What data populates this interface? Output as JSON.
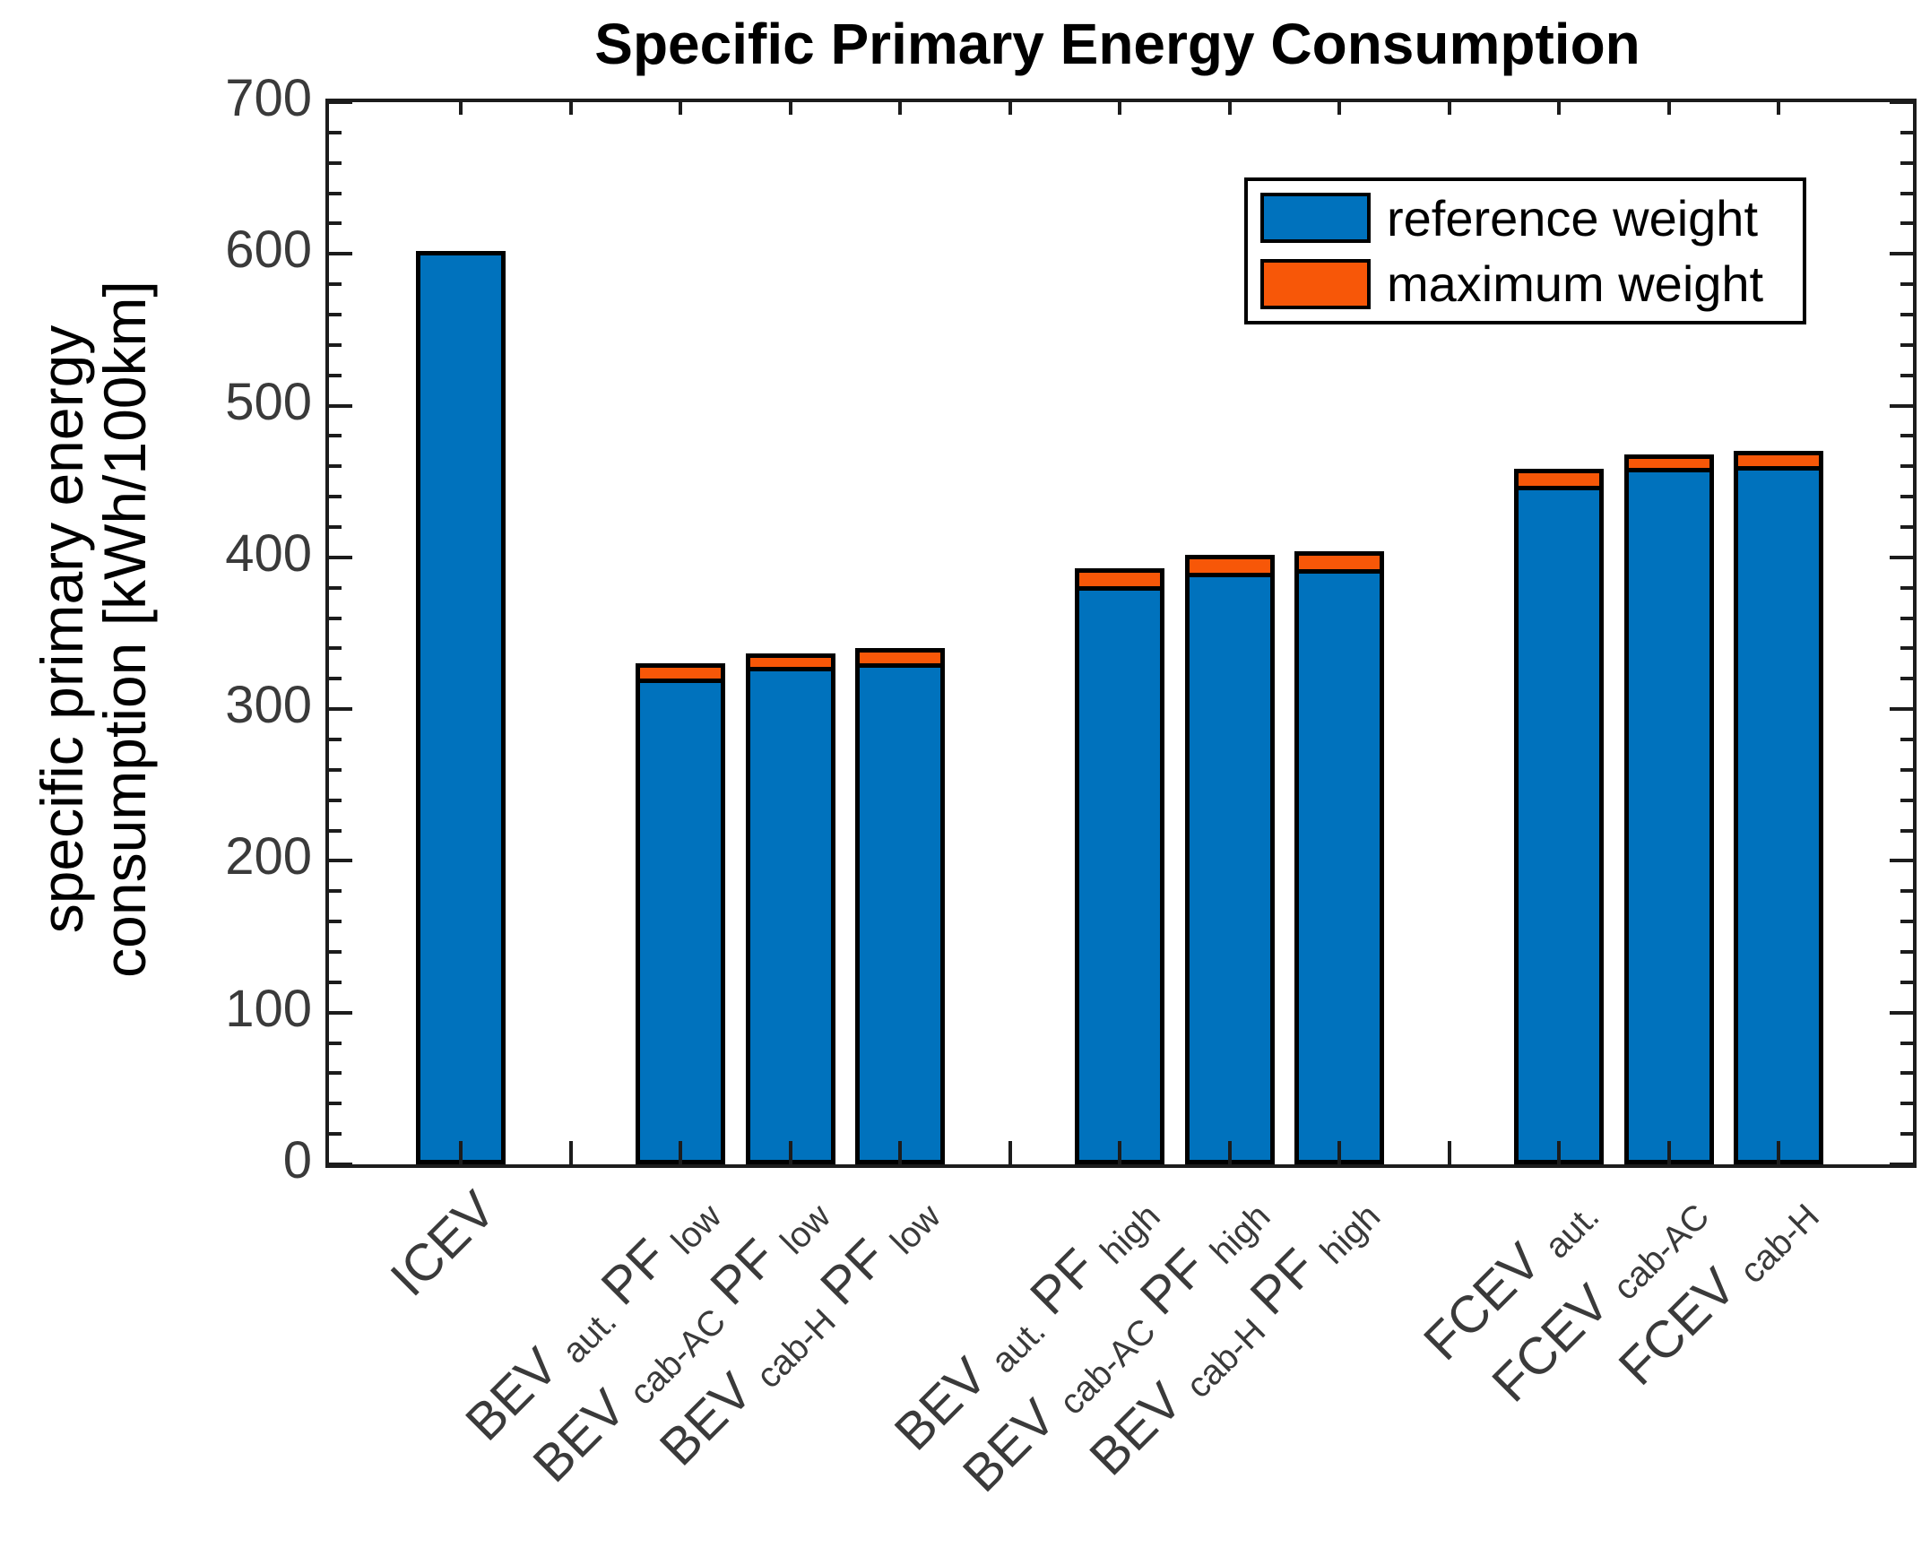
{
  "title": "Specific Primary Energy Consumption",
  "y_axis": {
    "label_lines": [
      "specific primary energy",
      "consumption [kWh/100km]"
    ],
    "ticks": [
      0,
      100,
      200,
      300,
      400,
      500,
      600,
      700
    ],
    "minor_tick_step": 20,
    "range": [
      0,
      700
    ]
  },
  "x_axis": {
    "tick_slots": [
      1,
      2,
      3,
      4,
      5,
      6,
      7,
      8,
      9,
      10,
      11,
      12,
      13
    ]
  },
  "legend": {
    "items": [
      {
        "label": "reference weight",
        "color": "#0072BD"
      },
      {
        "label": "maximum weight",
        "color": "#F75708"
      }
    ]
  },
  "chart_data": {
    "type": "bar",
    "stacked": true,
    "title": "Specific Primary Energy Consumption",
    "ylabel": "specific primary energy consumption [kWh/100km]",
    "xlabel": "",
    "ylim": [
      0,
      700
    ],
    "grid": false,
    "legend_position": "upper right",
    "categories": [
      {
        "slot": 1,
        "label_parts": [
          "ICEV"
        ]
      },
      {
        "slot": 3,
        "label_parts": [
          "BEV ",
          "aut.",
          " PF ",
          "low"
        ]
      },
      {
        "slot": 4,
        "label_parts": [
          "BEV ",
          "cab-AC",
          " PF ",
          "low"
        ]
      },
      {
        "slot": 5,
        "label_parts": [
          "BEV ",
          "cab-H",
          " PF ",
          "low"
        ]
      },
      {
        "slot": 7,
        "label_parts": [
          "BEV ",
          "aut.",
          " PF ",
          "high"
        ]
      },
      {
        "slot": 8,
        "label_parts": [
          "BEV ",
          "cab-AC",
          " PF ",
          "high"
        ]
      },
      {
        "slot": 9,
        "label_parts": [
          "BEV ",
          "cab-H",
          " PF ",
          "high"
        ]
      },
      {
        "slot": 11,
        "label_parts": [
          "FCEV ",
          "aut."
        ]
      },
      {
        "slot": 12,
        "label_parts": [
          "FCEV ",
          "cab-AC"
        ]
      },
      {
        "slot": 13,
        "label_parts": [
          "FCEV ",
          "cab-H"
        ]
      }
    ],
    "series": [
      {
        "name": "reference weight",
        "color": "#0072BD",
        "values": [
          602,
          320,
          328,
          330,
          381,
          390,
          392,
          447,
          459,
          460
        ]
      },
      {
        "name": "maximum weight",
        "color": "#F75708",
        "values": [
          602,
          330,
          337,
          340,
          393,
          402,
          404,
          458,
          468,
          470
        ]
      }
    ]
  }
}
